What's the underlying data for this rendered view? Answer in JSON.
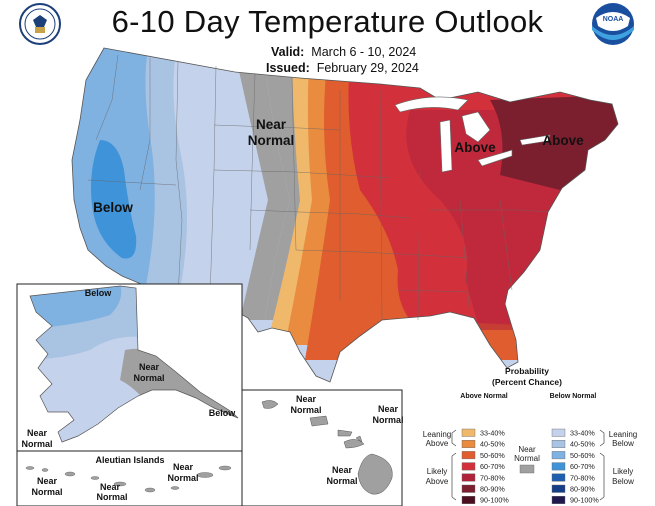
{
  "title": "6-10 Day Temperature Outlook",
  "valid": {
    "label": "Valid:",
    "value": "March 6 - 10, 2024"
  },
  "issued": {
    "label": "Issued:",
    "value": "February 29, 2024"
  },
  "logos": {
    "left": "commerce-seal",
    "right": "noaa-logo",
    "right_text": "NOAA"
  },
  "colors": {
    "above_33_40": "#f0b86a",
    "above_40_50": "#e98c3f",
    "above_50_60": "#df5d2e",
    "above_60_70": "#d2313c",
    "above_70_80": "#b0223a",
    "above_80_90": "#7b1e2e",
    "above_90_100": "#4a1020",
    "near_normal": "#a0a0a0",
    "below_33_40": "#c5d2eb",
    "below_40_50": "#a9c3e3",
    "below_50_60": "#7fb1e1",
    "below_60_70": "#3f93d9",
    "below_70_80": "#1f5fb0",
    "below_80_90": "#163e87",
    "below_90_100": "#1e1a4e"
  },
  "map_labels": {
    "conus_below": "Below",
    "conus_near_1": "Near",
    "conus_near_2": "Normal",
    "conus_above_1": "Above",
    "conus_above_2": "Above",
    "ak_below_1": "Below",
    "ak_below_2": "Below",
    "ak_near_a1": "Near",
    "ak_near_a2": "Normal",
    "ak_near_b1": "Near",
    "ak_near_b2": "Normal",
    "aleutian_title": "Aleutian Islands",
    "al_near_a1": "Near",
    "al_near_a2": "Normal",
    "al_near_b1": "Near",
    "al_near_b2": "Normal",
    "al_near_c1": "Near",
    "al_near_c2": "Normal",
    "hi_near_a1": "Near",
    "hi_near_a2": "Normal",
    "hi_near_b1": "Near",
    "hi_near_b2": "Normal",
    "hi_near_c1": "Near",
    "hi_near_c2": "Normal"
  },
  "legend": {
    "title_1": "Probability",
    "title_2": "(Percent Chance)",
    "above_header": "Above Normal",
    "below_header": "Below Normal",
    "near_1": "Near",
    "near_2": "Normal",
    "leaning_above_1": "Leaning",
    "leaning_above_2": "Above",
    "likely_above_1": "Likely",
    "likely_above_2": "Above",
    "leaning_below_1": "Leaning",
    "leaning_below_2": "Below",
    "likely_below_1": "Likely",
    "likely_below_2": "Below",
    "ranges": [
      "33-40%",
      "40-50%",
      "50-60%",
      "60-70%",
      "70-80%",
      "80-90%",
      "90-100%"
    ]
  }
}
